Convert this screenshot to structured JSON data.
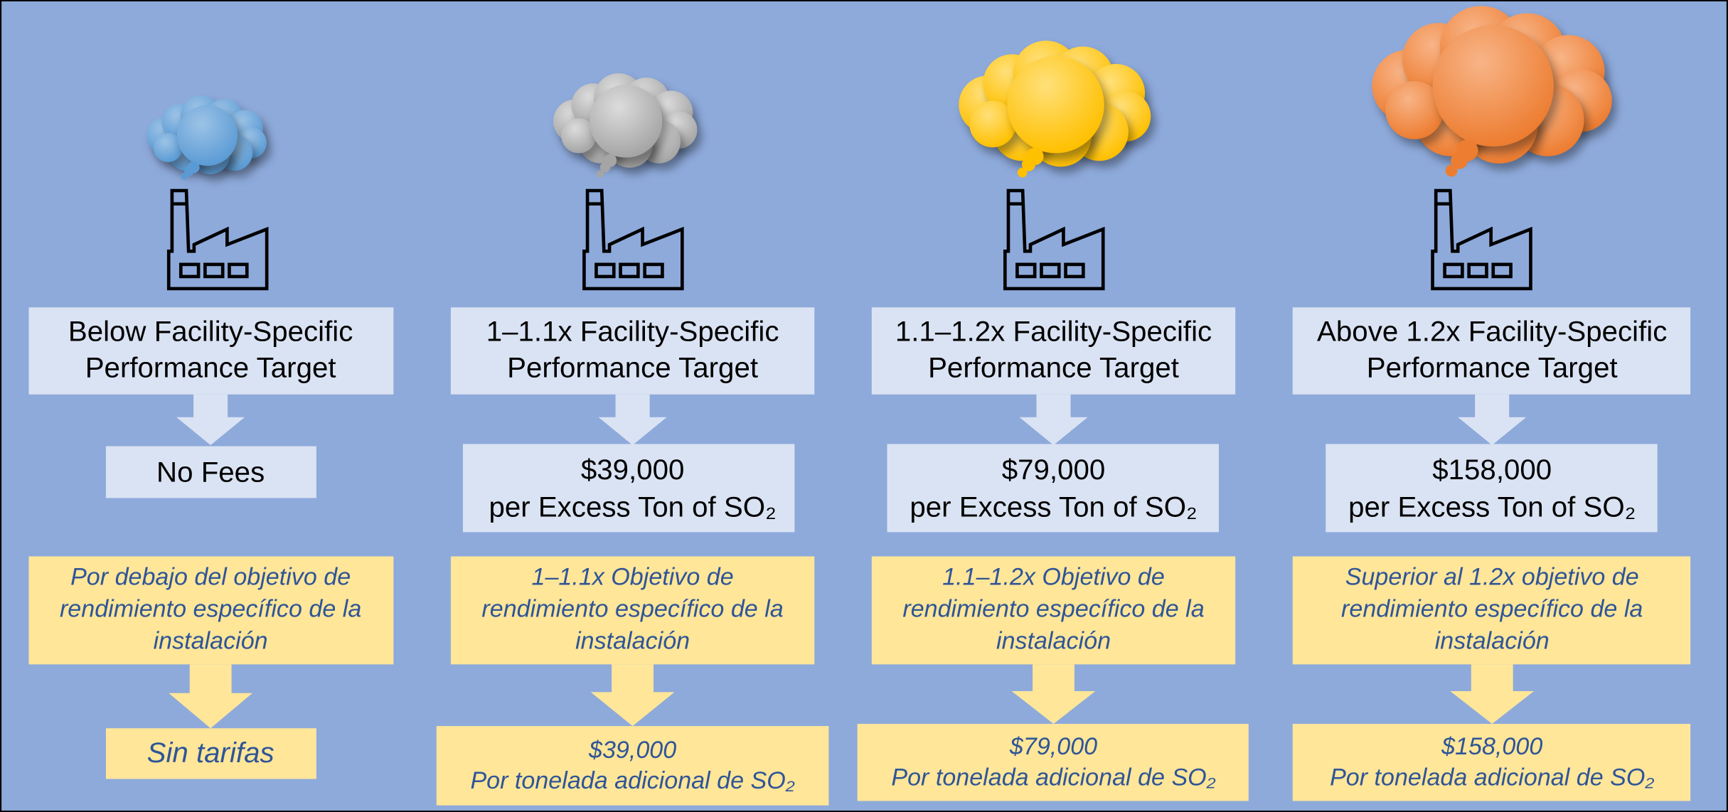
{
  "columns": [
    {
      "label_lines": [
        "Below Facility-Specific",
        "Performance Target"
      ],
      "result_lines": [
        "No Fees"
      ],
      "label_es_lines": [
        "Por debajo del objetivo de",
        "rendimiento específico de la",
        "instalación"
      ],
      "result_es_lines": [
        "Sin tarifas"
      ]
    },
    {
      "label_lines": [
        "1–1.1x Facility-Specific",
        "Performance Target"
      ],
      "result_lines": [
        "$39,000",
        "per Excess Ton of SO₂"
      ],
      "label_es_lines": [
        "1–1.1x Objetivo de",
        "rendimiento específico de la",
        "instalación"
      ],
      "result_es_lines": [
        "$39,000",
        "Por tonelada adicional de SO₂"
      ]
    },
    {
      "label_lines": [
        "1.1–1.2x Facility-Specific",
        "Performance Target"
      ],
      "result_lines": [
        "$79,000",
        "per Excess Ton of SO₂"
      ],
      "label_es_lines": [
        "1.1–1.2x Objetivo de",
        "rendimiento específico de la",
        "instalación"
      ],
      "result_es_lines": [
        "$79,000",
        "Por tonelada adicional de SO₂"
      ]
    },
    {
      "label_lines": [
        "Above 1.2x Facility-Specific",
        "Performance Target"
      ],
      "result_lines": [
        "$158,000",
        "per Excess Ton of SO₂"
      ],
      "label_es_lines": [
        "Superior al 1.2x objetivo de",
        "rendimiento específico de la",
        "instalación"
      ],
      "result_es_lines": [
        "$158,000",
        "Por tonelada adicional de SO₂"
      ]
    }
  ]
}
